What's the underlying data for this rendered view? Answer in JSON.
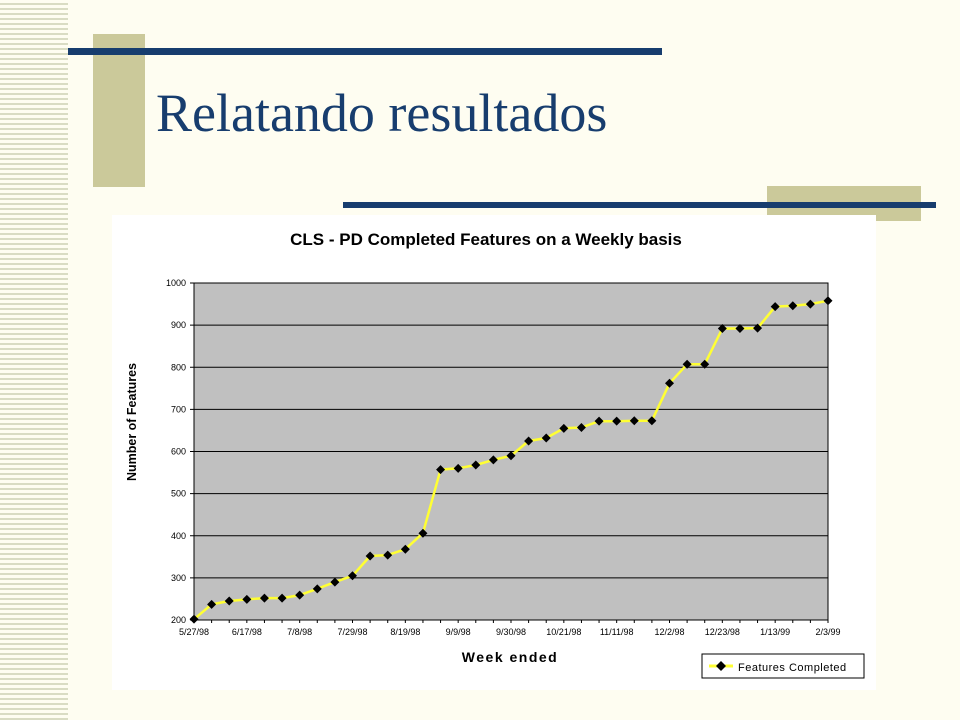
{
  "slide": {
    "title": "Relatando resultados"
  },
  "colors": {
    "accent_bar": "#173d6e",
    "accent_block": "#cbc99a",
    "plot_area": "#c0c0c0",
    "series_line": "#ffff33",
    "marker": "#000000"
  },
  "chart_data": {
    "type": "line",
    "title": "CLS - PD Completed Features on a Weekly basis",
    "xlabel": "Week ended",
    "ylabel": "Number of Features",
    "ylim": [
      200,
      1000
    ],
    "yticks": [
      200,
      300,
      400,
      500,
      600,
      700,
      800,
      900,
      1000
    ],
    "grid": true,
    "legend_position": "bottom-right",
    "x_tick_labels": [
      "5/27/98",
      "6/17/98",
      "7/8/98",
      "7/29/98",
      "8/19/98",
      "9/9/98",
      "9/30/98",
      "10/21/98",
      "11/11/98",
      "12/2/98",
      "12/23/98",
      "1/13/99",
      "2/3/99"
    ],
    "x_tick_every": 3,
    "series": [
      {
        "name": "Features Completed",
        "marker": "diamond",
        "values": [
          202,
          237,
          245,
          249,
          252,
          252,
          259,
          274,
          290,
          305,
          352,
          354,
          368,
          406,
          557,
          560,
          568,
          580,
          590,
          625,
          632,
          655,
          657,
          672,
          672,
          673,
          673,
          762,
          807,
          807,
          892,
          892,
          893,
          944,
          946,
          950,
          958
        ]
      }
    ]
  }
}
